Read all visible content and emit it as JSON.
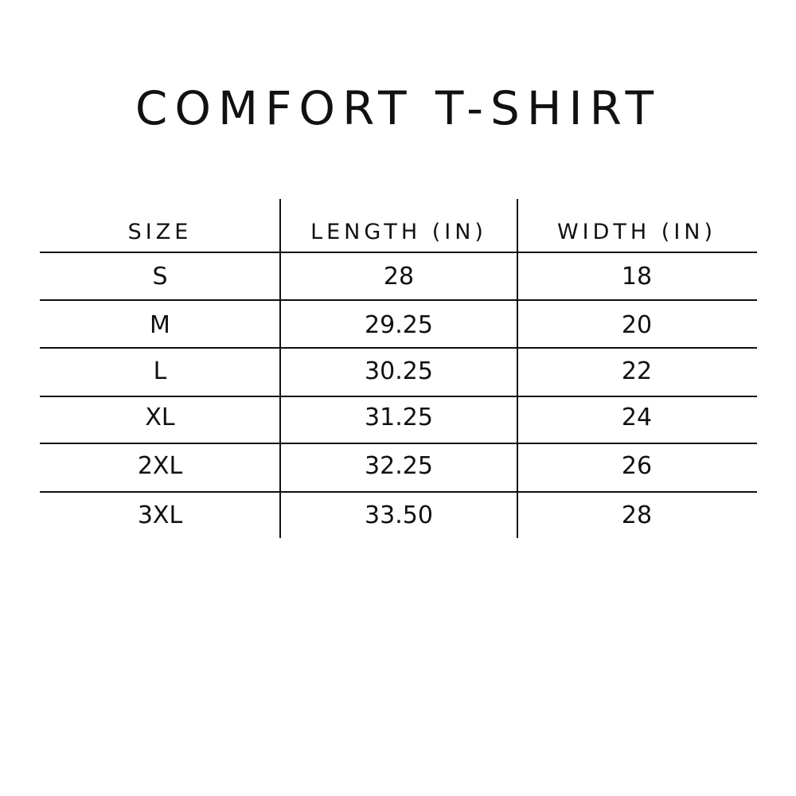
{
  "title": "COMFORT T-SHIRT",
  "table": {
    "headers": [
      "SIZE",
      "LENGTH (IN)",
      "WIDTH (IN)"
    ],
    "rows": [
      [
        "S",
        "28",
        "18"
      ],
      [
        "M",
        "29.25",
        "20"
      ],
      [
        "L",
        "30.25",
        "22"
      ],
      [
        "XL",
        "31.25",
        "24"
      ],
      [
        "2XL",
        "32.25",
        "26"
      ],
      [
        "3XL",
        "33.50",
        "28"
      ]
    ]
  }
}
